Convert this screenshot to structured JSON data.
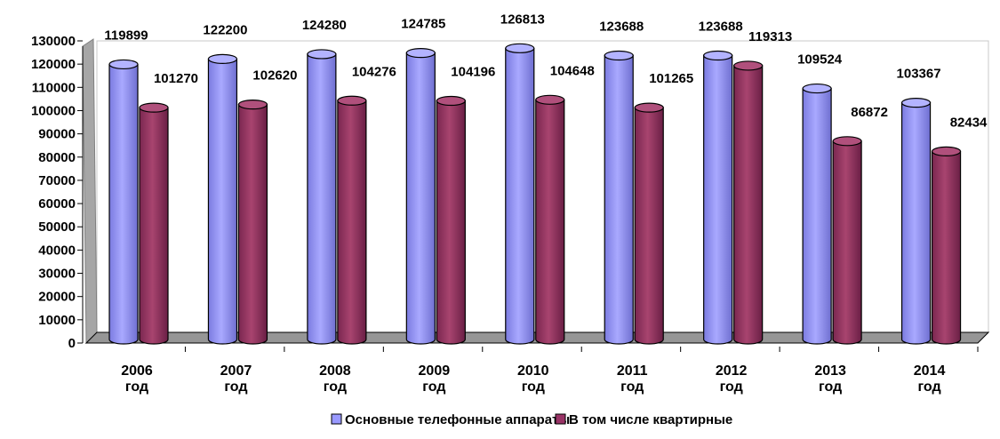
{
  "chart_data": {
    "type": "bar",
    "title": "",
    "xlabel": "",
    "ylabel": "",
    "ylim": [
      0,
      130000
    ],
    "ytick_step": 10000,
    "grid": false,
    "legend_position": "bottom",
    "categories": [
      [
        "2006",
        "год"
      ],
      [
        "2007",
        "год"
      ],
      [
        "2008",
        "год"
      ],
      [
        "2009",
        "год"
      ],
      [
        "2010",
        "год"
      ],
      [
        "2011",
        "год"
      ],
      [
        "2012",
        "год"
      ],
      [
        "2013",
        "год"
      ],
      [
        "2014",
        "год"
      ]
    ],
    "series": [
      {
        "name": "Основные телефонные аппараты",
        "color": "#9999ff",
        "values": [
          119899,
          122200,
          124280,
          124785,
          126813,
          123688,
          123688,
          109524,
          103367
        ]
      },
      {
        "name": "В том числе квартирные",
        "color": "#993366",
        "values": [
          101270,
          102620,
          104276,
          104196,
          104648,
          101265,
          119313,
          86872,
          82434
        ]
      }
    ]
  }
}
